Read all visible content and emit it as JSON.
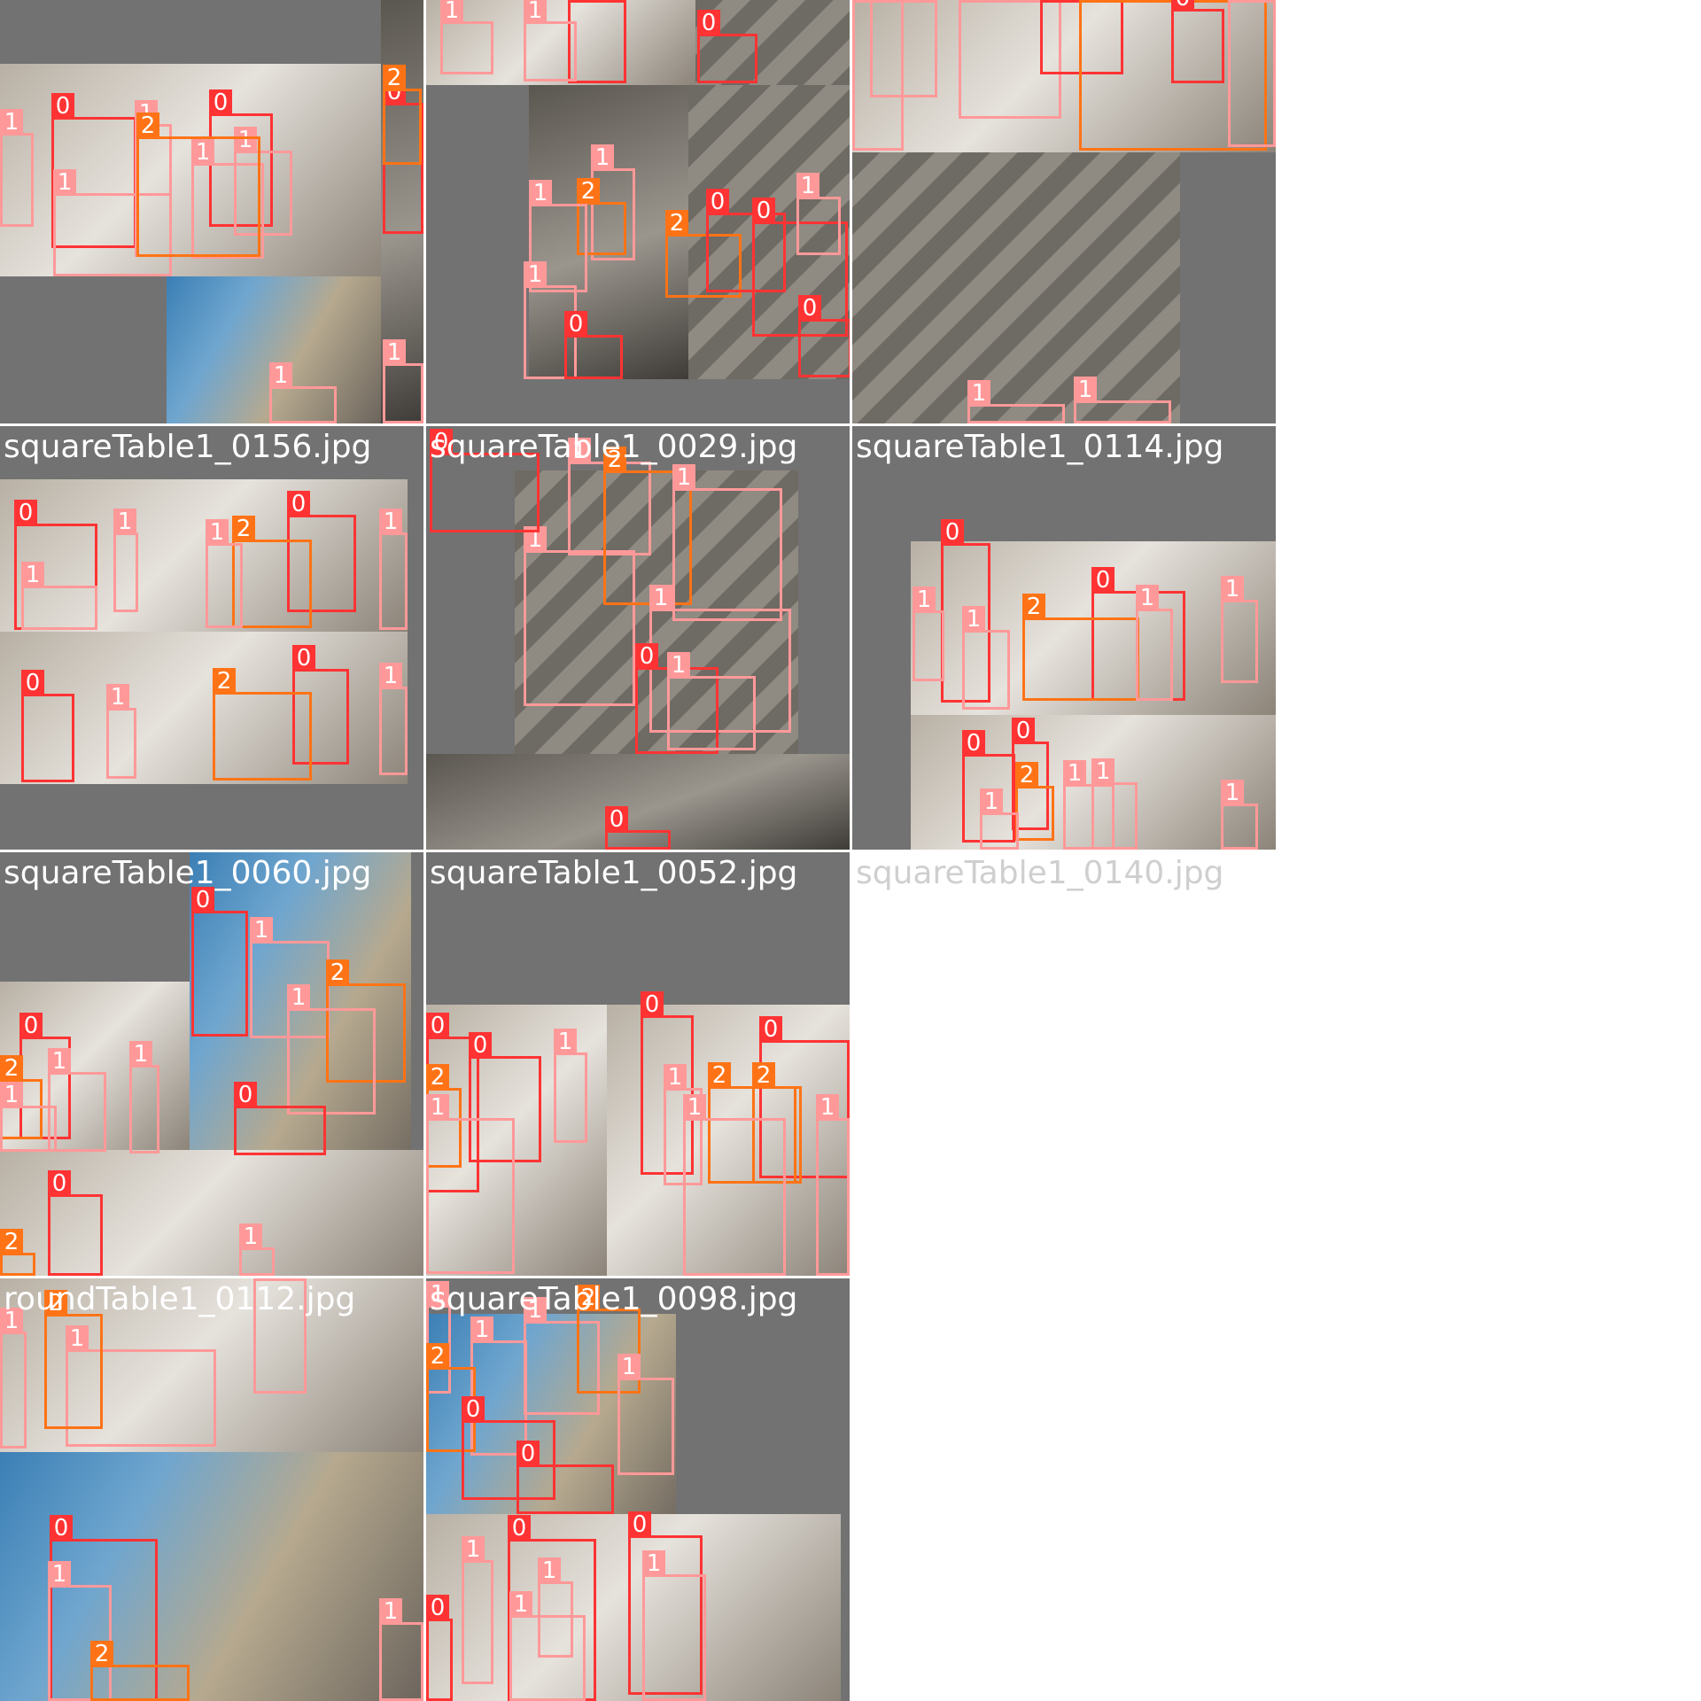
{
  "colors": {
    "class_0": "#ff3333",
    "class_1": "#ff9999",
    "class_2": "#ff7316",
    "tile_bg": "#727272"
  },
  "tiles": [
    {
      "title": ""
    },
    {
      "title": ""
    },
    {
      "title": ""
    },
    {
      "title": "squareTable1_0156.jpg"
    },
    {
      "title": "squareTable1_0029.jpg"
    },
    {
      "title": "squareTable1_0114.jpg"
    },
    {
      "title": "squareTable1_0060.jpg"
    },
    {
      "title": "squareTable1_0052.jpg"
    },
    {
      "title": "squareTable1_0140.jpg"
    },
    {
      "title": "roundTable1_0112.jpg"
    },
    {
      "title": "squareTable1_0098.jpg"
    }
  ],
  "labels": [
    {
      "cls": "0"
    },
    {
      "cls": "1"
    },
    {
      "cls": "2"
    }
  ]
}
